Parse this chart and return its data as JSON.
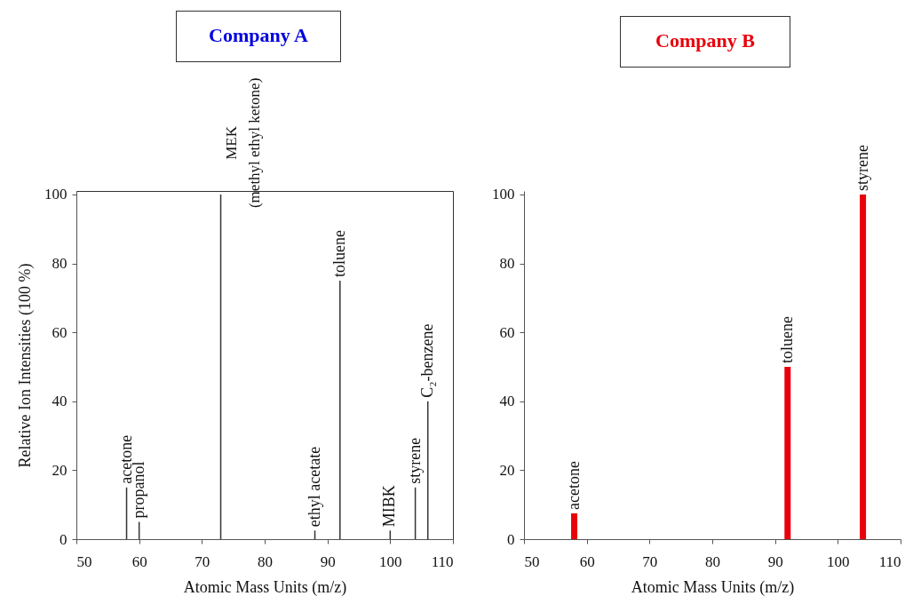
{
  "chart_data": [
    {
      "type": "bar",
      "title": "Company A",
      "xlabel": "Atomic Mass Units (m/z)",
      "ylabel": "Relative Ion Intensities (100 %)",
      "x": [
        58,
        60,
        73,
        88,
        92,
        100,
        104,
        106
      ],
      "series": [
        {
          "color": "#333333",
          "values": [
            15,
            5,
            100,
            2.5,
            75,
            2.5,
            15,
            40
          ]
        }
      ],
      "xlim": [
        50,
        110
      ],
      "xticks": [
        50,
        60,
        70,
        80,
        90,
        100,
        110
      ],
      "ylim": [
        0,
        101
      ],
      "yticks": [
        0,
        20,
        40,
        60,
        80,
        100
      ],
      "annotations": [
        {
          "text": "acetone",
          "x": 58,
          "y": 15
        },
        {
          "text": "propanol",
          "x": 60,
          "y": 5
        },
        {
          "text": "MEK\n(methyl ethyl ketone)",
          "x": 73,
          "y": 100
        },
        {
          "text": "ethyl acetate",
          "x": 88,
          "y": 2.5
        },
        {
          "text": "toluene",
          "x": 92,
          "y": 75
        },
        {
          "text": "MIBK",
          "x": 100,
          "y": 2.5
        },
        {
          "text": "styrene",
          "x": 104,
          "y": 15
        },
        {
          "text": "C₂-benzene",
          "x": 106,
          "y": 40
        }
      ],
      "grid": false
    },
    {
      "type": "bar",
      "title": "Company B",
      "xlabel": "Atomic Mass Units (m/z)",
      "x": [
        58,
        92,
        104
      ],
      "series": [
        {
          "color": "#e8000b",
          "values": [
            7.5,
            50,
            100
          ]
        }
      ],
      "xlim": [
        50,
        110
      ],
      "xticks": [
        50,
        60,
        70,
        80,
        90,
        100,
        110
      ],
      "ylim": [
        0,
        101
      ],
      "yticks": [
        0,
        20,
        40,
        60,
        80,
        100
      ],
      "annotations": [
        {
          "text": "acetone",
          "x": 58,
          "y": 7.5
        },
        {
          "text": "toluene",
          "x": 92,
          "y": 50
        },
        {
          "text": "styrene",
          "x": 104,
          "y": 100
        }
      ],
      "grid": false
    }
  ]
}
